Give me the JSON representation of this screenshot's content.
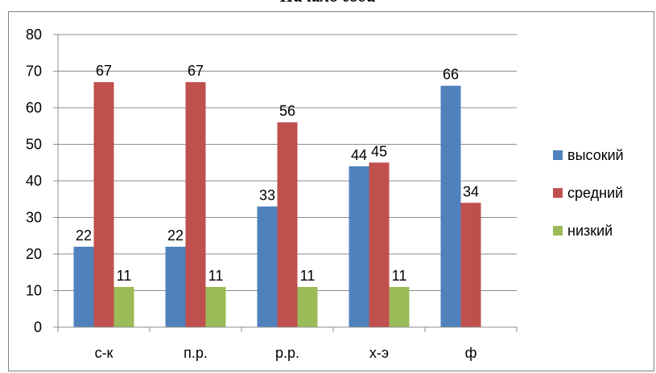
{
  "chart_data": {
    "type": "bar",
    "title": "Начало года",
    "categories": [
      "с-к",
      "п.р.",
      "р.р.",
      "х-э",
      "ф"
    ],
    "series": [
      {
        "name": "высокий",
        "values": [
          22,
          22,
          33,
          44,
          66
        ],
        "color": "#4f81bd",
        "labels": [
          "22",
          "22",
          "33",
          "44",
          "66"
        ]
      },
      {
        "name": "средний",
        "values": [
          67,
          67,
          56,
          45,
          34
        ],
        "color": "#c0504d",
        "labels": [
          "67",
          "67",
          "56",
          "45",
          "34"
        ]
      },
      {
        "name": "низкий",
        "values": [
          11,
          11,
          11,
          11,
          0
        ],
        "color": "#9bbb59",
        "labels": [
          "11",
          "11",
          "11",
          "11",
          ""
        ]
      }
    ],
    "xlabel": "",
    "ylabel": "",
    "ylim": [
      0,
      80
    ],
    "yticks": [
      0,
      10,
      20,
      30,
      40,
      50,
      60,
      70,
      80
    ],
    "grid": true,
    "legend_position": "right",
    "gridline_color": "#8c8c8c"
  }
}
